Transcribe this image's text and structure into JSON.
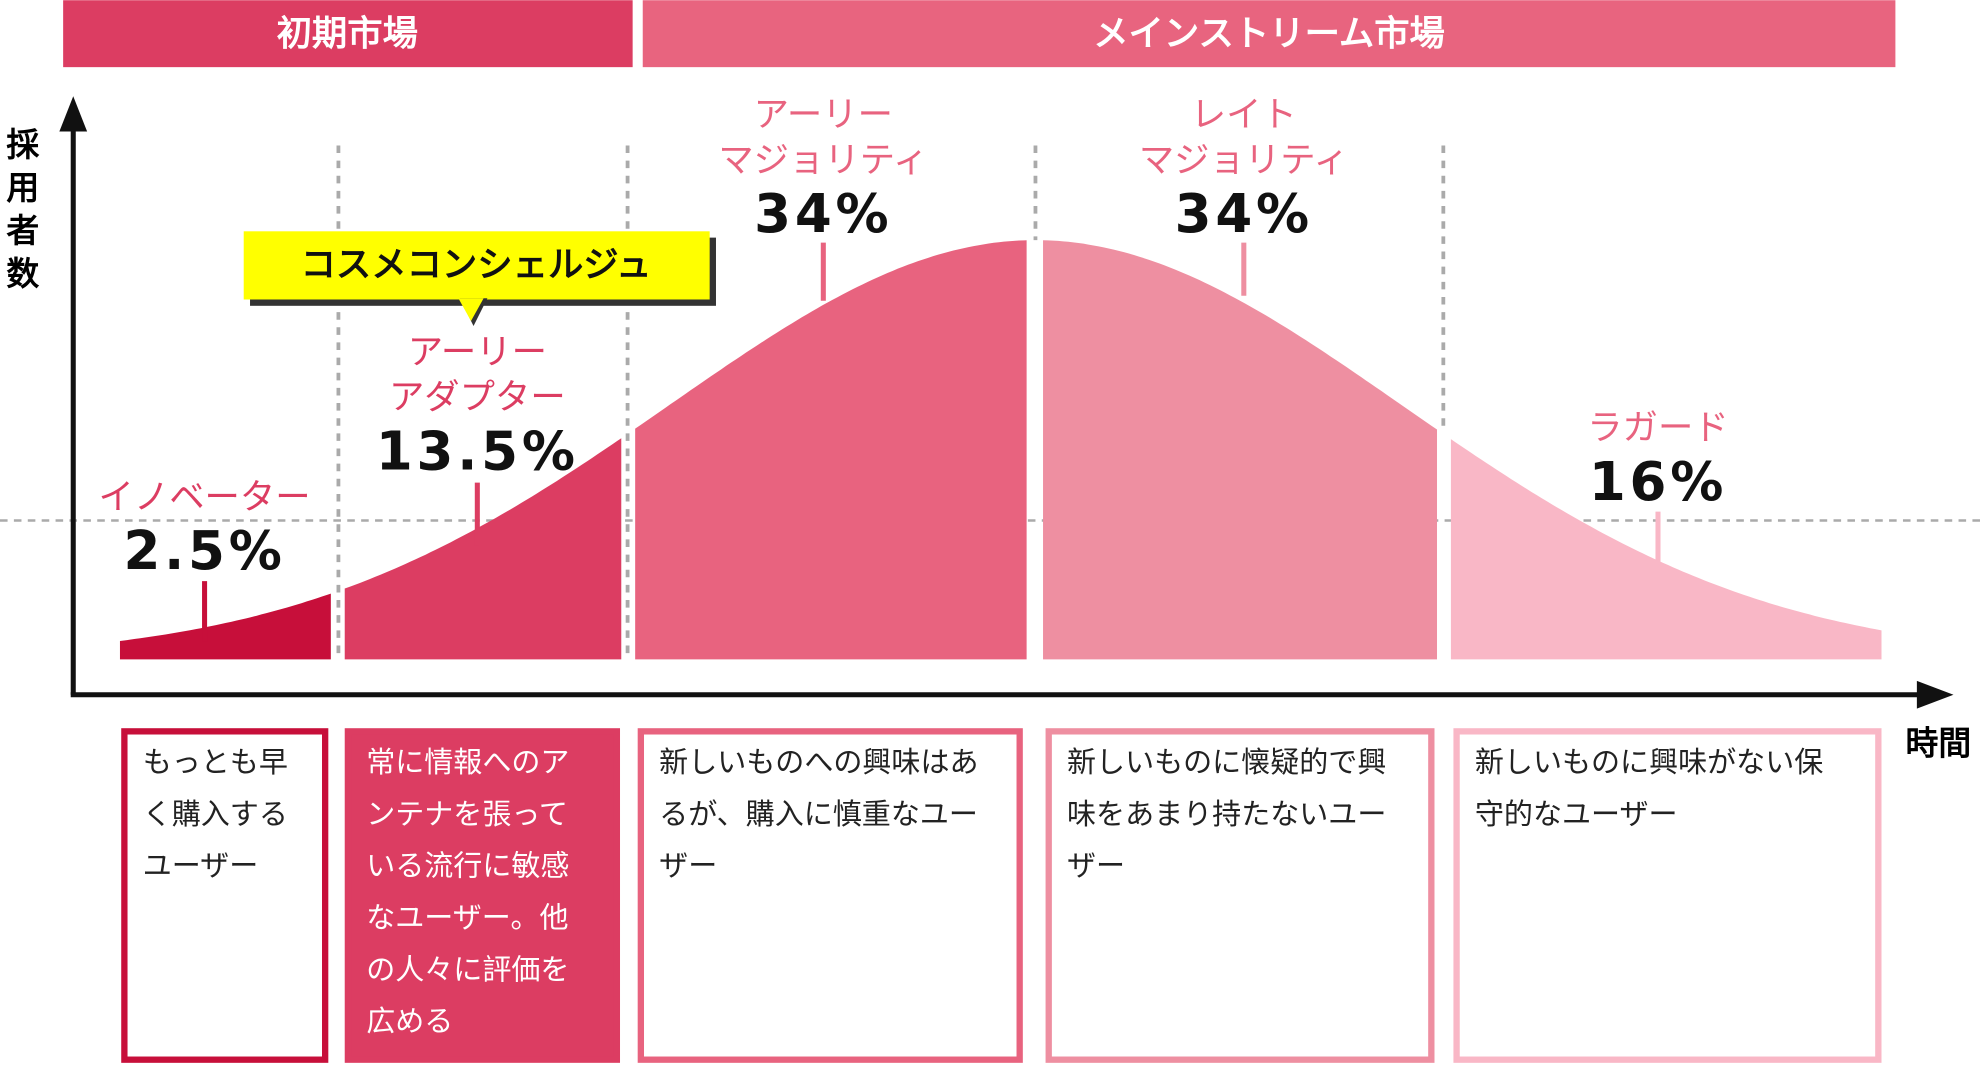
{
  "markets": [
    {
      "label": "初期市場"
    },
    {
      "label": "メインストリーム市場"
    }
  ],
  "axes": {
    "y_label": [
      "採",
      "用",
      "者",
      "数"
    ],
    "x_label": "時間"
  },
  "callout": "コスメコンシェルジュ",
  "segments": [
    {
      "name": [
        "イノベーター"
      ],
      "share": "2.5%",
      "description": [
        "もっとも早",
        "く購入する",
        "ユーザー"
      ]
    },
    {
      "name": [
        "アーリー",
        "アダプター"
      ],
      "share": "13.5%",
      "description": [
        "常に情報へのア",
        "ンテナを張って",
        "いる流行に敏感",
        "なユーザー。他",
        "の人々に評価を",
        "広める"
      ]
    },
    {
      "name": [
        "アーリー",
        "マジョリティ"
      ],
      "share": "34%",
      "description": [
        "新しいものへの興味はあ",
        "るが、購入に慎重なユー",
        "ザー"
      ]
    },
    {
      "name": [
        "レイト",
        "マジョリティ"
      ],
      "share": "34%",
      "description": [
        "新しいものに懐疑的で興",
        "味をあまり持たないユー",
        "ザー"
      ]
    },
    {
      "name": [
        "ラガード"
      ],
      "share": "16%",
      "description": [
        "新しいものに興味がない保",
        "守的なユーザー"
      ]
    }
  ]
}
